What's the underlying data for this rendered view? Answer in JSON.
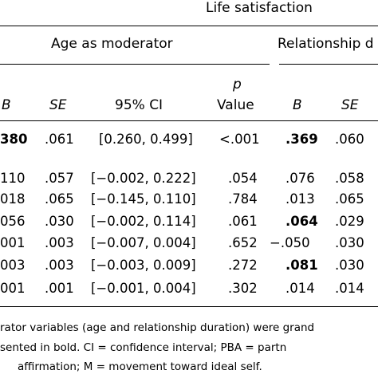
{
  "header": {
    "life_satisfaction": "Life satisfaction",
    "age_moderator": "Age as moderator",
    "relationship_moderator": "Relationship d"
  },
  "columns": {
    "b": "B",
    "se": "SE",
    "ci": "95% CI",
    "p_italic": "p",
    "p_value": "Value",
    "b2": "B",
    "se2": "SE"
  },
  "rows": [
    {
      "b": "380",
      "se": ".061",
      "ci": "[0.260, 0.499]",
      "p": "<.001",
      "b2": ".369",
      "se2": ".060"
    },
    {
      "b": "110",
      "se": ".057",
      "ci": "[−0.002, 0.222]",
      "p": ".054",
      "b2": ".076",
      "se2": ".058"
    },
    {
      "b": "018",
      "se": ".065",
      "ci": "[−0.145, 0.110]",
      "p": ".784",
      "b2": ".013",
      "se2": ".065"
    },
    {
      "b": "056",
      "se": ".030",
      "ci": "[−0.002, 0.114]",
      "p": ".061",
      "b2": ".064",
      "se2": ".029"
    },
    {
      "b": "001",
      "se": ".003",
      "ci": "[−0.007, 0.004]",
      "p": ".652",
      "b2": "−.050",
      "se2": ".030"
    },
    {
      "b": "003",
      "se": ".003",
      "ci": "[−0.003, 0.009]",
      "p": ".272",
      "b2": ".081",
      "se2": ".030"
    },
    {
      "b": "001",
      "se": ".001",
      "ci": "[−0.001, 0.004]",
      "p": ".302",
      "b2": ".014",
      "se2": ".014"
    }
  ],
  "notes": {
    "line1": "rator variables (age and relationship duration) were grand",
    "line2": "sented in bold. CI = confidence interval; PBA = partn",
    "line3": "affirmation; M = movement toward ideal self."
  }
}
